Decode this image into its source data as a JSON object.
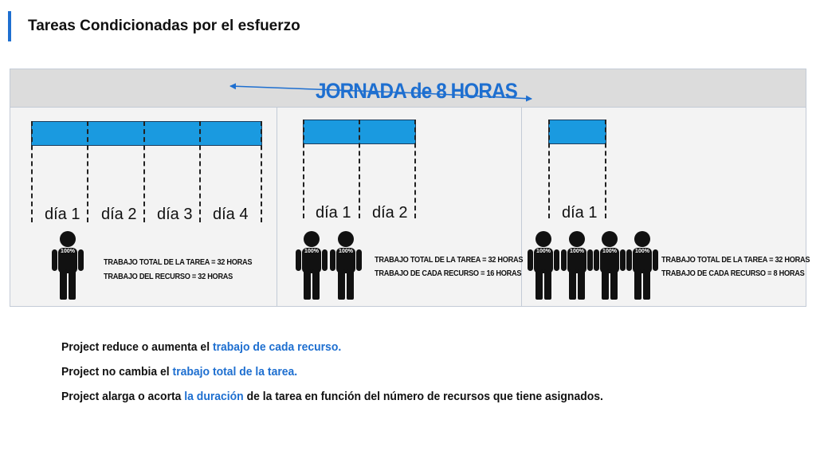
{
  "page": {
    "title": "Tareas Condicionadas por el esfuerzo"
  },
  "header": {
    "title": "JORNADA de 8 HORAS"
  },
  "panels": [
    {
      "days": [
        "día 1",
        "día 2",
        "día 3",
        "día 4"
      ],
      "resource_pct": "100%",
      "info_line1": "TRABAJO TOTAL DE LA TAREA = 32 HORAS",
      "info_line2": "TRABAJO DEL RECURSO = 32 HORAS"
    },
    {
      "days": [
        "día 1",
        "día 2"
      ],
      "resource_pct": "100%",
      "info_line1": "TRABAJO TOTAL DE LA TAREA = 32 HORAS",
      "info_line2": "TRABAJO DE CADA  RECURSO = 16 HORAS"
    },
    {
      "days": [
        "día 1"
      ],
      "resource_pct": "100%",
      "info_line1": "TRABAJO TOTAL DE LA TAREA = 32 HORAS",
      "info_line2": "TRABAJO DE CADA  RECURSO = 8 HORAS"
    }
  ],
  "notes": [
    {
      "before": "Project reduce o aumenta el ",
      "highlight": "trabajo de cada recurso",
      "after": "."
    },
    {
      "before": "Project no cambia el ",
      "highlight": "trabajo total de la tarea",
      "after": "."
    },
    {
      "before": "Project alarga o acorta ",
      "highlight": "la duración",
      "after": " de la tarea en función del número de recursos que tiene asignados."
    }
  ],
  "colors": {
    "accent": "#1e6fd0",
    "bar_fill": "#1a9ae0",
    "header_band": "#dcdcdc"
  },
  "icons": {
    "resource": "person-icon",
    "span_arrow": "double-arrow-icon"
  }
}
